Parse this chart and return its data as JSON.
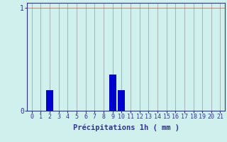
{
  "categories": [
    0,
    1,
    2,
    3,
    4,
    5,
    6,
    7,
    8,
    9,
    10,
    11,
    12,
    13,
    14,
    15,
    16,
    17,
    18,
    19,
    20,
    21
  ],
  "values": [
    0,
    0,
    0.2,
    0,
    0,
    0,
    0,
    0,
    0,
    0.35,
    0.2,
    0,
    0,
    0,
    0,
    0,
    0,
    0,
    0,
    0,
    0,
    0
  ],
  "bar_color": "#0000cc",
  "background_color": "#cff0ec",
  "grid_color": "#999999",
  "axis_color": "#333399",
  "hline_color": "#cc5555",
  "xlabel": "Précipitations 1h ( mm )",
  "ylim": [
    0,
    1.05
  ],
  "xlim": [
    -0.5,
    21.5
  ],
  "yticks": [
    0,
    1
  ],
  "xlabel_fontsize": 7.5,
  "tick_fontsize": 6
}
